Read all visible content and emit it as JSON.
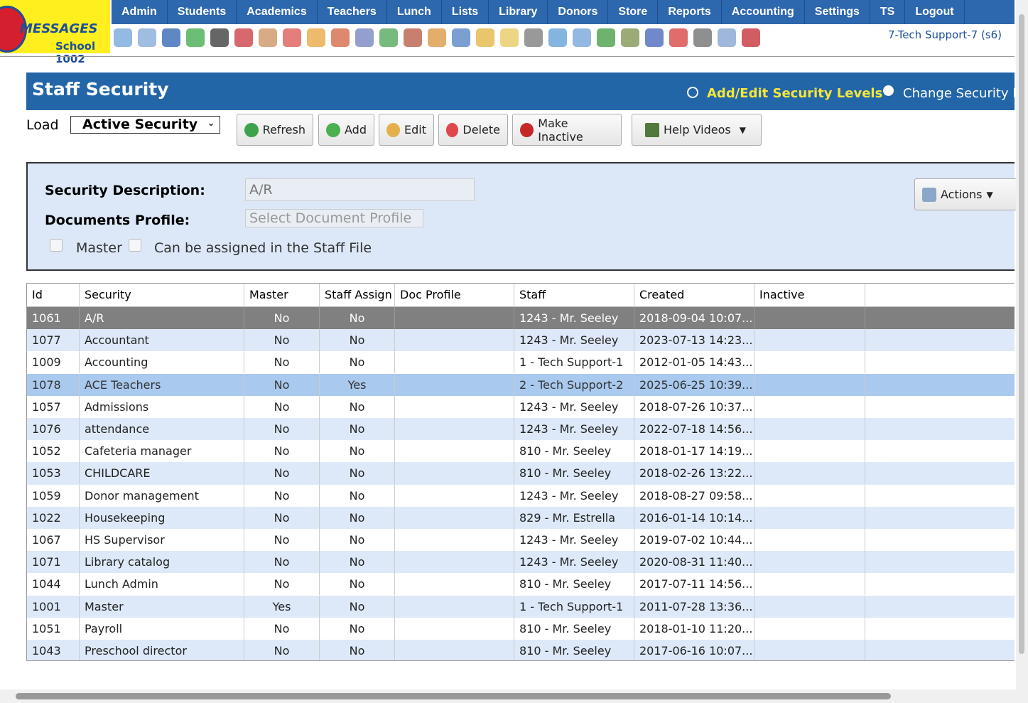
{
  "header": {
    "logo": "MESSAGES",
    "school": "School 1002",
    "nav": [
      "Admin",
      "Students",
      "Academics",
      "Teachers",
      "Lunch",
      "Lists",
      "Library",
      "Donors",
      "Store",
      "Reports",
      "Accounting",
      "Settings",
      "TS",
      "Logout"
    ],
    "user": "7-Tech Support-7 (s6)"
  },
  "page": {
    "title": "Staff Security",
    "modes": [
      "Add/Edit Security Levels",
      "Change Security Levels"
    ],
    "load_label": "Load",
    "load_value": "Active Security",
    "buttons": [
      "Refresh",
      "Add",
      "Edit",
      "Delete",
      "Make Inactive",
      "Help Videos"
    ]
  },
  "form": {
    "description_label": "Security Description:",
    "description_value": "A/R",
    "profile_label": "Documents Profile:",
    "profile_placeholder": "Select Document Profile",
    "checkboxes": [
      "Master",
      "Can be assigned in the Staff File"
    ],
    "actions": "Actions"
  },
  "table": {
    "columns": [
      "Id",
      "Security",
      "Master",
      "Staff Assign",
      "Doc Profile",
      "Staff",
      "Created",
      "Inactive"
    ],
    "selected_row": 0,
    "highlighted_row": 3,
    "rows": [
      [
        "1061",
        "A/R",
        "No",
        "No",
        "",
        "1243 - Mr. Seeley",
        "2018-09-04 10:07...",
        ""
      ],
      [
        "1077",
        "Accountant",
        "No",
        "No",
        "",
        "1243 - Mr. Seeley",
        "2023-07-13 14:23...",
        ""
      ],
      [
        "1009",
        "Accounting",
        "No",
        "No",
        "",
        "1 - Tech Support-1",
        "2012-01-05 14:43...",
        ""
      ],
      [
        "1078",
        "ACE Teachers",
        "No",
        "Yes",
        "",
        "2 - Tech Support-2",
        "2025-06-25 10:39...",
        ""
      ],
      [
        "1057",
        "Admissions",
        "No",
        "No",
        "",
        "1243 - Mr. Seeley",
        "2018-07-26 10:37...",
        ""
      ],
      [
        "1076",
        "attendance",
        "No",
        "No",
        "",
        "1243 - Mr. Seeley",
        "2022-07-18 14:56...",
        ""
      ],
      [
        "1052",
        "Cafeteria manager",
        "No",
        "No",
        "",
        "810 - Mr. Seeley",
        "2018-01-17 14:19...",
        ""
      ],
      [
        "1053",
        "CHILDCARE",
        "No",
        "No",
        "",
        "810 - Mr. Seeley",
        "2018-02-26 13:22...",
        ""
      ],
      [
        "1059",
        "Donor management",
        "No",
        "No",
        "",
        "1243 - Mr. Seeley",
        "2018-08-27 09:58...",
        ""
      ],
      [
        "1022",
        "Housekeeping",
        "No",
        "No",
        "",
        "829 - Mr. Estrella",
        "2016-01-14 10:14...",
        ""
      ],
      [
        "1067",
        "HS Supervisor",
        "No",
        "No",
        "",
        "1243 - Mr. Seeley",
        "2019-07-02 10:44...",
        ""
      ],
      [
        "1071",
        "Library catalog",
        "No",
        "No",
        "",
        "1243 - Mr. Seeley",
        "2020-08-31 11:40...",
        ""
      ],
      [
        "1044",
        "Lunch Admin",
        "No",
        "No",
        "",
        "810 - Mr. Seeley",
        "2017-07-11 14:56...",
        ""
      ],
      [
        "1001",
        "Master",
        "Yes",
        "No",
        "",
        "1 - Tech Support-1",
        "2011-07-28 13:36...",
        ""
      ],
      [
        "1051",
        "Payroll",
        "No",
        "No",
        "",
        "810 - Mr. Seeley",
        "2018-01-10 11:20...",
        ""
      ],
      [
        "1043",
        "Preschool director",
        "No",
        "No",
        "",
        "810 - Mr. Seeley",
        "2017-06-16 10:07...",
        ""
      ]
    ]
  }
}
